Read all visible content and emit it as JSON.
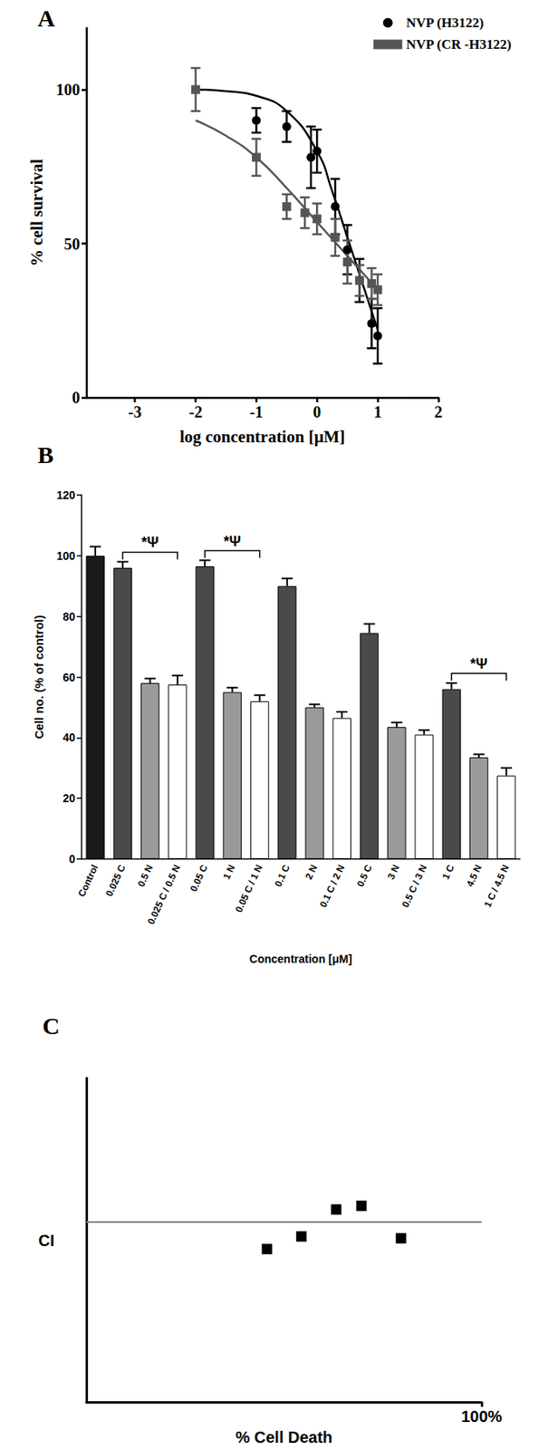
{
  "chart_data": [
    {
      "type": "scatter",
      "title": "A",
      "xlabel": "log concentration [μM]",
      "ylabel": "% cell survival",
      "xlim": [
        -3.8,
        2
      ],
      "xticks": [
        -3,
        -2,
        -1,
        0,
        1,
        2
      ],
      "ylim": [
        0,
        120
      ],
      "yticks": [
        0,
        50,
        100
      ],
      "grid": false,
      "legend": "upper right",
      "series": [
        {
          "name": "NVP (H3122)",
          "color": "#000000",
          "marker": "circle",
          "x": [
            -1,
            -0.5,
            -0.1,
            0,
            0.3,
            0.5,
            0.7,
            0.9,
            1
          ],
          "values": [
            90,
            88,
            78,
            80,
            62,
            48,
            38,
            24,
            20
          ],
          "errors": [
            4,
            5,
            10,
            7,
            9,
            8,
            7,
            8,
            9
          ],
          "fit": {
            "x": [
              -2,
              -1.5,
              -1,
              -0.5,
              0,
              0.25,
              0.5,
              0.75,
              1
            ],
            "values": [
              100,
              99.5,
              98,
              93,
              80,
              67,
              52,
              37,
              22
            ]
          }
        },
        {
          "name": "NVP (CR -H3122)",
          "color": "#555555",
          "marker": "rect",
          "x": [
            -2,
            -1,
            -0.5,
            -0.2,
            0,
            0.3,
            0.5,
            0.7,
            0.9,
            1
          ],
          "values": [
            100,
            78,
            62,
            60,
            58,
            52,
            44,
            38,
            37,
            35
          ],
          "errors": [
            7,
            6,
            4,
            5,
            5,
            6,
            7,
            5,
            5,
            5
          ],
          "fit": {
            "x": [
              -2,
              -1.5,
              -1,
              -0.5,
              0,
              0.5,
              1
            ],
            "values": [
              90,
              85,
              78,
              68,
              57,
              46,
              35
            ]
          }
        }
      ]
    },
    {
      "type": "bar",
      "title": "B",
      "xlabel": "Concentration [μM]",
      "ylabel": "Cell no. (% of control)",
      "categories": [
        "Control",
        "0.025 C",
        "0.5 N",
        "0.025 C / 0.5 N",
        "0.05 C",
        "1 N",
        "0.05 C / 1 N",
        "0.1 C",
        "2 N",
        "0.1 C / 2 N",
        "0.5 C",
        "3 N",
        "0.5 C / 3 N",
        "1 C",
        "4.5 N",
        "1 C / 4.5 N"
      ],
      "values": [
        100,
        96,
        58,
        57.5,
        96.5,
        55,
        52,
        90,
        50,
        46.5,
        74.5,
        43.5,
        41,
        56,
        33.5,
        27.5
      ],
      "errors": [
        3,
        2,
        1.5,
        3,
        2,
        1.5,
        2,
        2.5,
        1,
        2,
        3,
        1.5,
        1.5,
        2,
        1,
        2.5
      ],
      "colors": [
        "#1a1a1a",
        "#4a4a4a",
        "#9a9a9a",
        "#ffffff",
        "#4a4a4a",
        "#9a9a9a",
        "#ffffff",
        "#4a4a4a",
        "#9a9a9a",
        "#ffffff",
        "#4a4a4a",
        "#9a9a9a",
        "#ffffff",
        "#4a4a4a",
        "#9a9a9a",
        "#ffffff"
      ],
      "ylim": [
        0,
        120
      ],
      "yticks": [
        0,
        20,
        40,
        60,
        80,
        100,
        120
      ],
      "grid": false,
      "annotations": [
        {
          "text": "*Ψ",
          "from": "0.025 C",
          "to": "0.025 C / 0.5 N"
        },
        {
          "text": "*Ψ",
          "from": "0.05 C",
          "to": "0.05 C / 1 N"
        },
        {
          "text": "*Ψ",
          "from": "1 C",
          "to": "1 C / 4.5 N"
        }
      ]
    },
    {
      "type": "scatter",
      "title": "C",
      "xlabel": "% Cell Death",
      "ylabel": "CI",
      "xlim": [
        0,
        100
      ],
      "xticks": [
        {
          "value": 100,
          "label": "100%"
        }
      ],
      "ylim": [
        0,
        1.8
      ],
      "yticks": [],
      "grid": false,
      "tick_labels": "x",
      "marker": "rect",
      "color": "#000000",
      "x": [
        45.7,
        54.4,
        63.2,
        69.6,
        79.6
      ],
      "values": [
        0.85,
        0.92,
        1.07,
        1.09,
        0.91
      ],
      "reference_line": {
        "y": 1,
        "color": "#808080"
      }
    }
  ]
}
